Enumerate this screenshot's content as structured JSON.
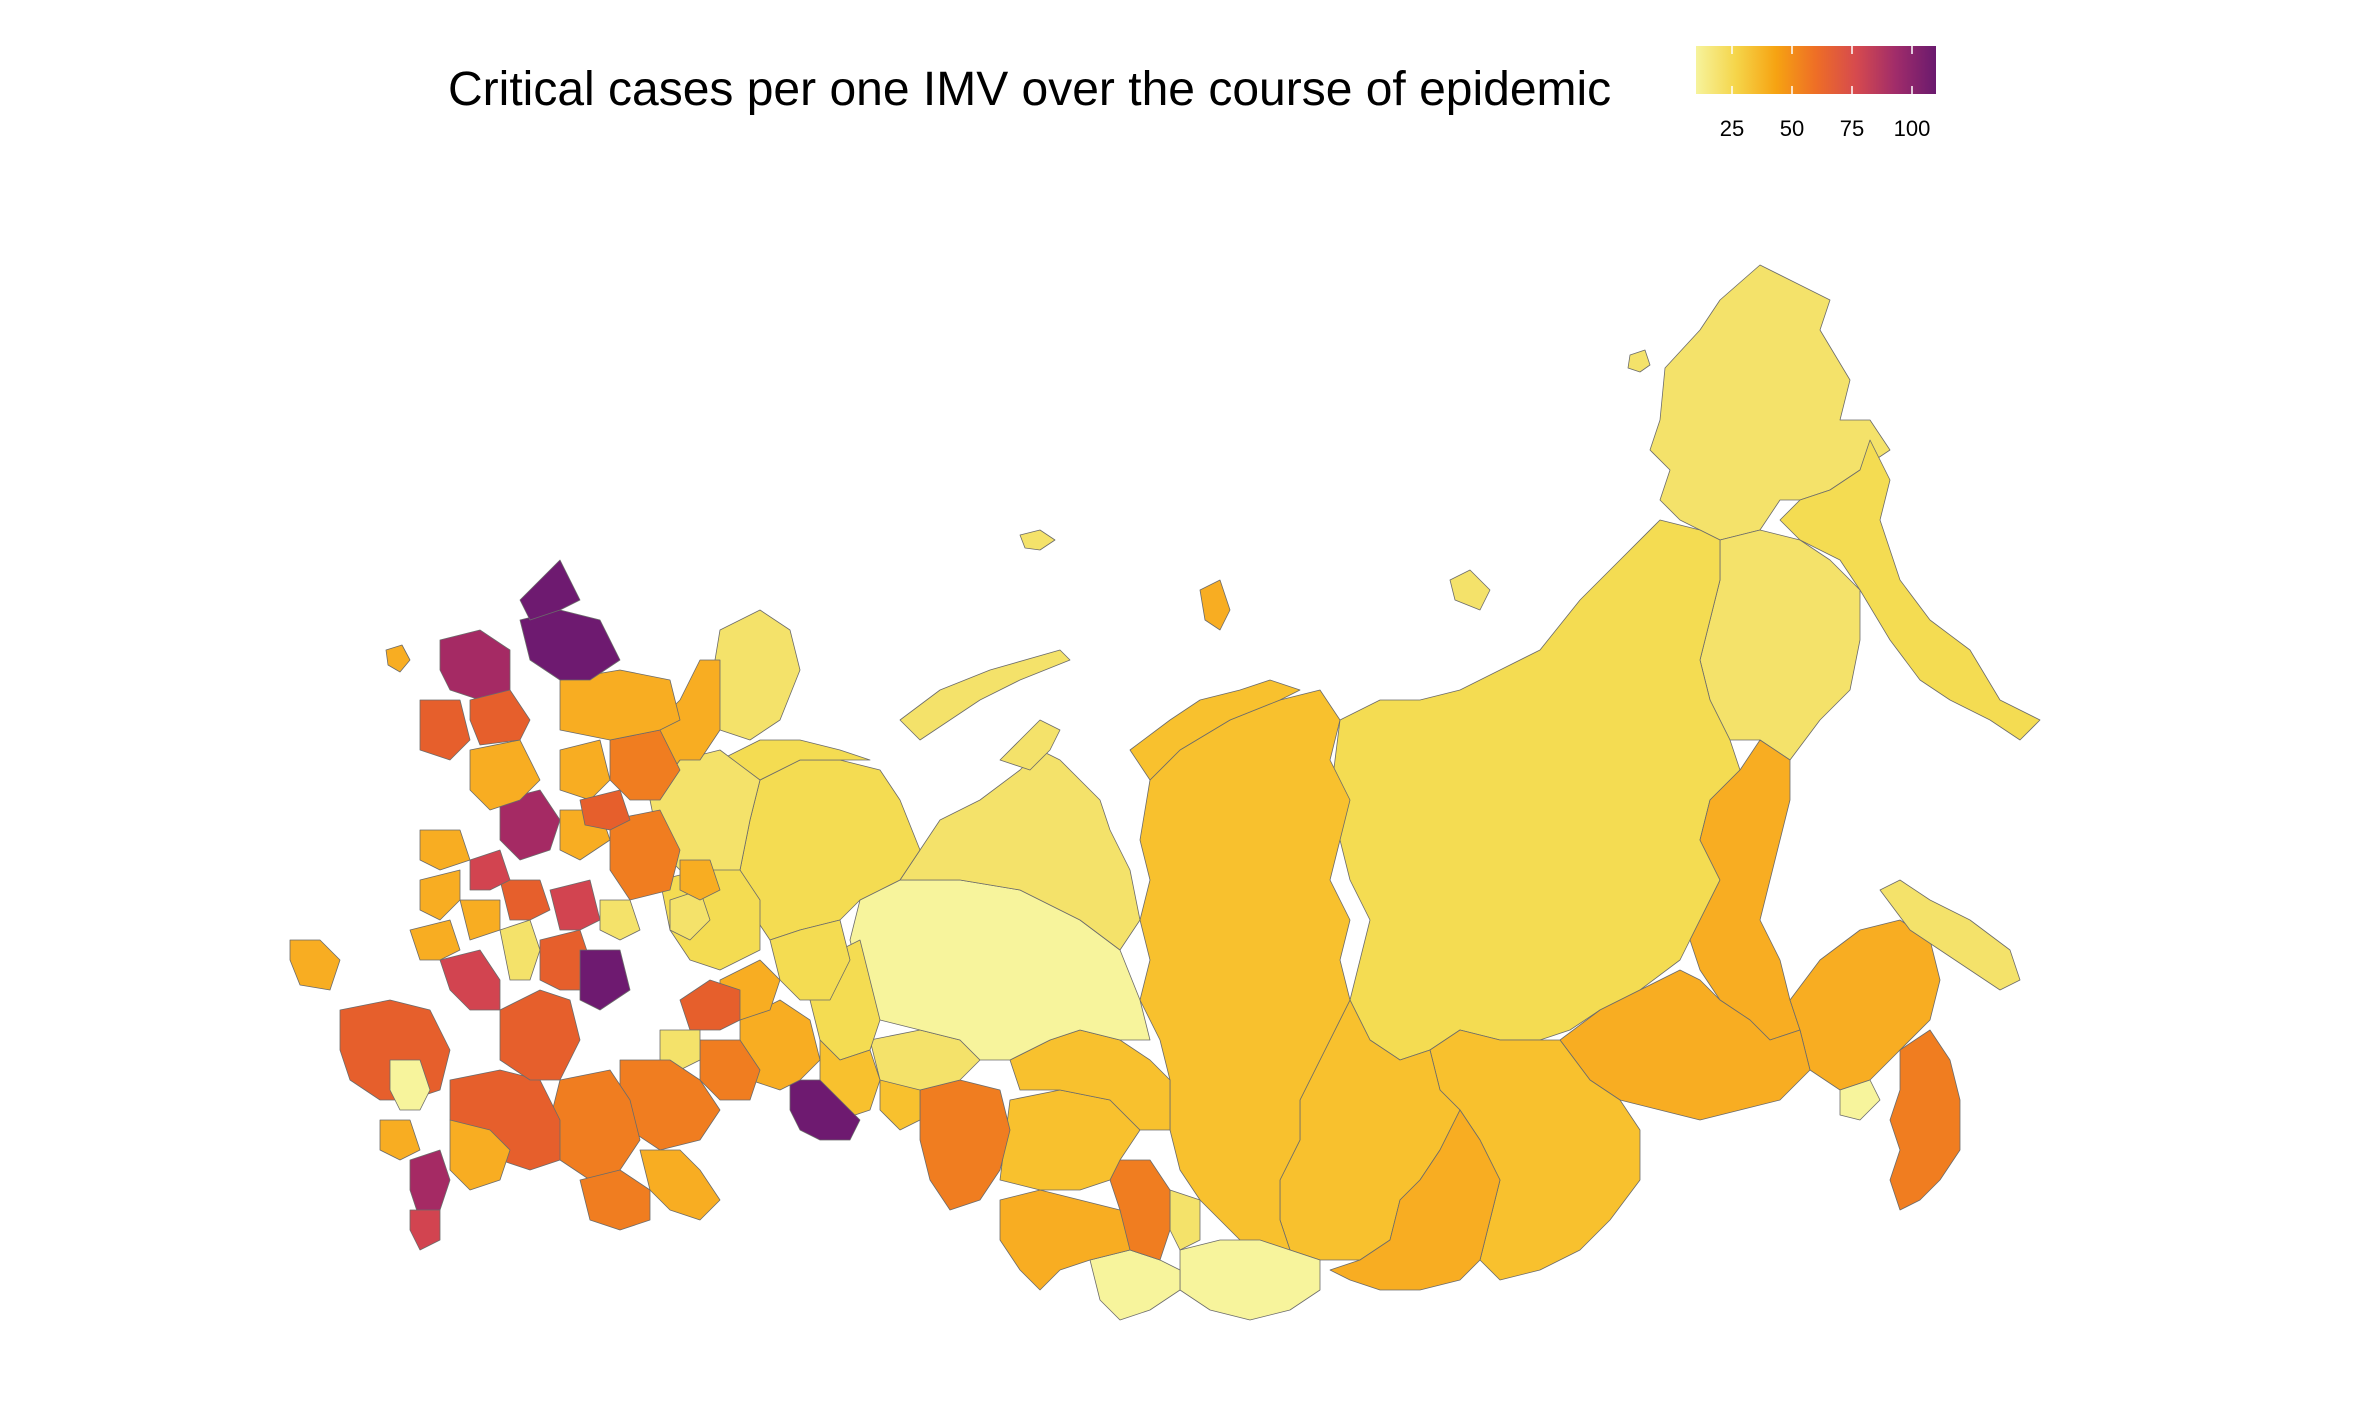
{
  "title": "Critical cases per one IMV over the course of epidemic",
  "legend": {
    "min": 10,
    "max": 110,
    "ticks": [
      25,
      50,
      75,
      100
    ],
    "tick_labels": [
      "25",
      "50",
      "75",
      "100"
    ],
    "colors": [
      "#f6f39c",
      "#f5d54a",
      "#f6a312",
      "#ee6e26",
      "#d64a4e",
      "#a02c6a",
      "#6a1a6e"
    ]
  },
  "map_colors": {
    "pale_yellow": "#f7f49c",
    "light_yellow": "#f4e26a",
    "yellow": "#f4dc52",
    "yellow_orange": "#f8c12e",
    "light_orange": "#f8ad22",
    "orange": "#f79b18",
    "dark_orange": "#f07d20",
    "red_orange": "#e65f2c",
    "red": "#d24450",
    "magenta": "#a52a64",
    "purple": "#6e1a70",
    "border": "#6b6b6b"
  }
}
